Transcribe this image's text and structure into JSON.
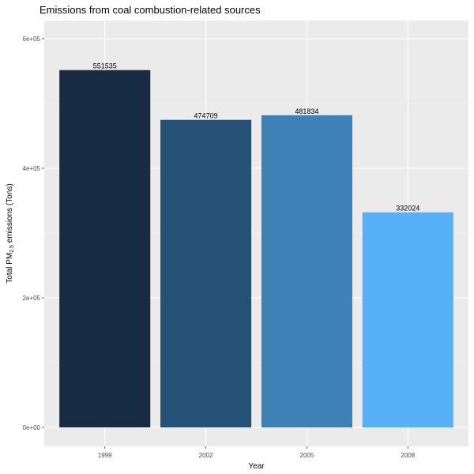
{
  "chart_data": {
    "type": "bar",
    "title": "Emissions from coal combustion-related sources",
    "xlabel": "Year",
    "ylabel_main": "Total PM",
    "ylabel_sub": "2.5",
    "ylabel_rest": " emissions (Tons)",
    "categories": [
      "1999",
      "2002",
      "2005",
      "2008"
    ],
    "values": [
      551535,
      474709,
      481834,
      332024
    ],
    "value_labels": [
      "551535",
      "474709",
      "481834",
      "332024"
    ],
    "colors": [
      "#172B43",
      "#265177",
      "#3E81B6",
      "#56B1F7"
    ],
    "ylim": [
      0,
      610000
    ],
    "yticks": [
      0,
      200000,
      400000,
      600000
    ],
    "ytick_labels": [
      "0e+00",
      "2e+05",
      "4e+05",
      "6e+05"
    ],
    "panel_background": "#EBEBEB",
    "grid": true,
    "legend": "none"
  }
}
